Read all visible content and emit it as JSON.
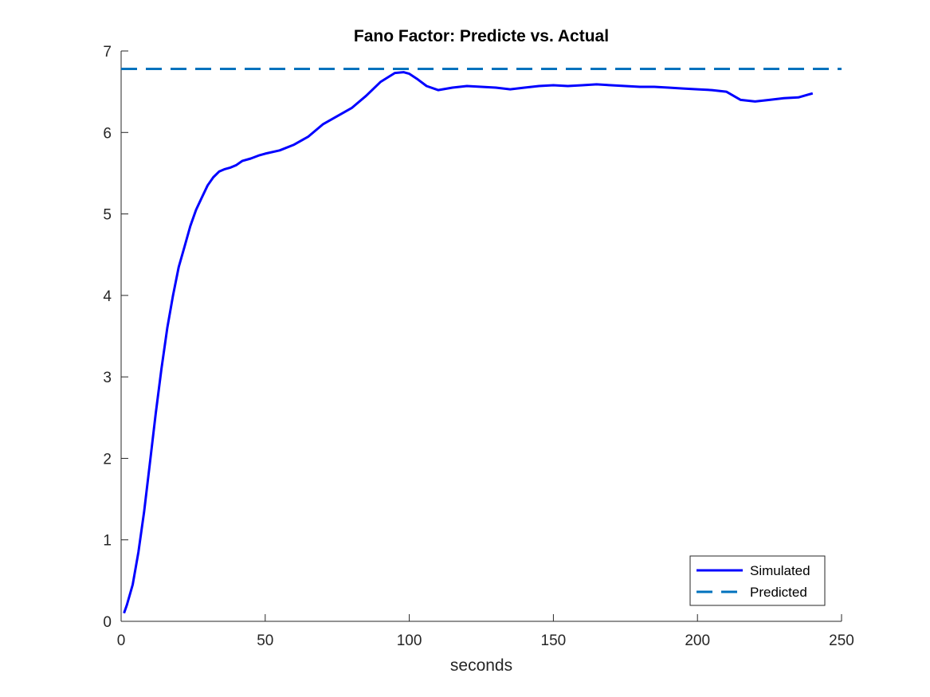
{
  "chart_data": {
    "type": "line",
    "title": "Fano Factor: Predicte vs. Actual",
    "xlabel": "seconds",
    "ylabel": "",
    "xlim": [
      0,
      250
    ],
    "ylim": [
      0,
      7
    ],
    "xticks": [
      0,
      50,
      100,
      150,
      200,
      250
    ],
    "yticks": [
      0,
      1,
      2,
      3,
      4,
      5,
      6,
      7
    ],
    "grid": false,
    "legend_position": "bottom-right",
    "series": [
      {
        "name": "Simulated",
        "style": "solid",
        "color": "#0000ff",
        "x": [
          1,
          2,
          4,
          6,
          8,
          10,
          12,
          14,
          16,
          18,
          20,
          22,
          24,
          26,
          28,
          30,
          32,
          34,
          36,
          38,
          40,
          42,
          45,
          48,
          50,
          55,
          60,
          65,
          70,
          75,
          80,
          85,
          90,
          95,
          98,
          100,
          103,
          106,
          110,
          115,
          120,
          125,
          130,
          135,
          140,
          145,
          150,
          155,
          160,
          165,
          170,
          175,
          180,
          185,
          190,
          195,
          200,
          205,
          210,
          215,
          220,
          225,
          230,
          235,
          240
        ],
        "y": [
          0.1,
          0.2,
          0.45,
          0.85,
          1.35,
          1.95,
          2.55,
          3.1,
          3.6,
          4.0,
          4.35,
          4.6,
          4.85,
          5.05,
          5.2,
          5.35,
          5.45,
          5.52,
          5.55,
          5.57,
          5.6,
          5.65,
          5.68,
          5.72,
          5.74,
          5.78,
          5.85,
          5.95,
          6.1,
          6.2,
          6.3,
          6.45,
          6.62,
          6.73,
          6.74,
          6.72,
          6.65,
          6.57,
          6.52,
          6.55,
          6.57,
          6.56,
          6.55,
          6.53,
          6.55,
          6.57,
          6.58,
          6.57,
          6.58,
          6.59,
          6.58,
          6.57,
          6.56,
          6.56,
          6.55,
          6.54,
          6.53,
          6.52,
          6.5,
          6.4,
          6.38,
          6.4,
          6.42,
          6.43,
          6.48
        ]
      },
      {
        "name": "Predicted",
        "style": "dashed",
        "color": "#0072bd",
        "x": [
          0,
          250
        ],
        "y": [
          6.78,
          6.78
        ]
      }
    ]
  }
}
